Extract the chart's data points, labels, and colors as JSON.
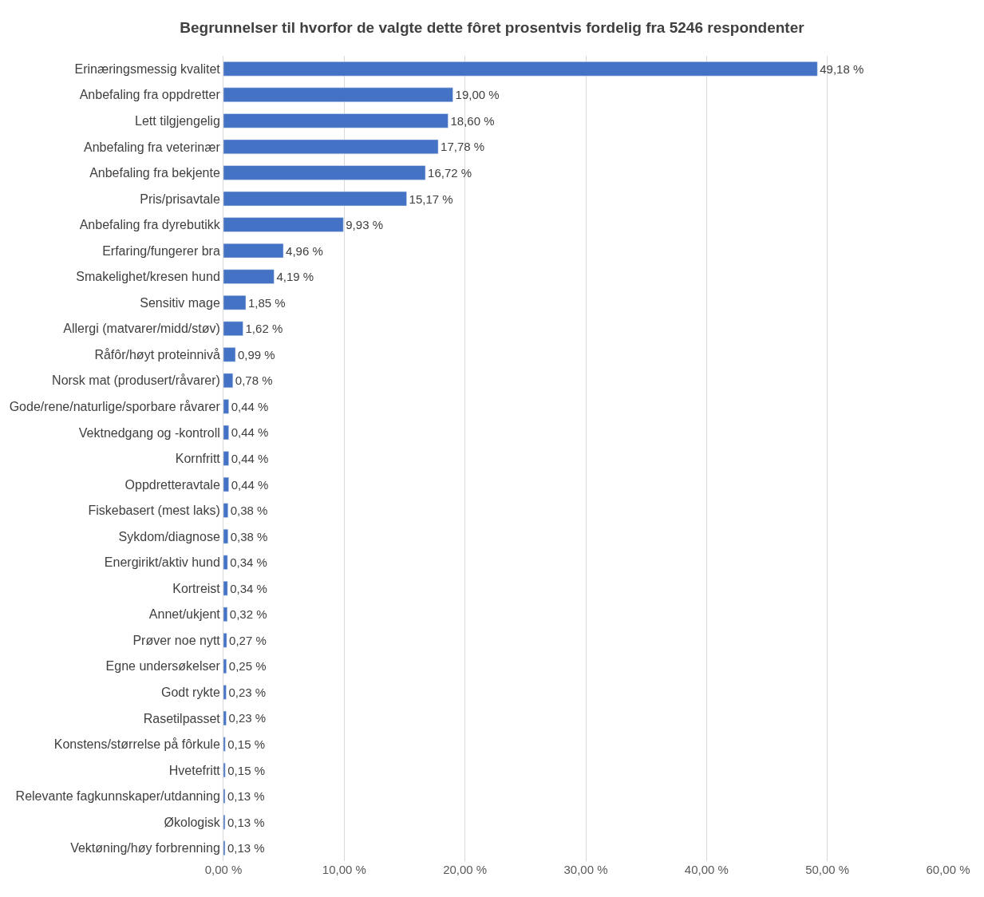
{
  "chart_data": {
    "type": "bar",
    "orientation": "horizontal",
    "title": "Begrunnelser til hvorfor de valgte dette fôret prosentvis fordelig fra 5246 respondenter",
    "categories": [
      "Erinæringsmessig kvalitet",
      "Anbefaling fra oppdretter",
      "Lett tilgjengelig",
      "Anbefaling fra veterinær",
      "Anbefaling fra bekjente",
      "Pris/prisavtale",
      "Anbefaling fra dyrebutikk",
      "Erfaring/fungerer bra",
      "Smakelighet/kresen hund",
      "Sensitiv mage",
      "Allergi (matvarer/midd/støv)",
      "Råfôr/høyt proteinnivå",
      "Norsk mat (produsert/råvarer)",
      "Gode/rene/naturlige/sporbare råvarer",
      "Vektnedgang og -kontroll",
      "Kornfritt",
      "Oppdretteravtale",
      "Fiskebasert (mest laks)",
      "Sykdom/diagnose",
      "Energirikt/aktiv hund",
      "Kortreist",
      "Annet/ukjent",
      "Prøver noe nytt",
      "Egne undersøkelser",
      "Godt rykte",
      "Rasetilpasset",
      "Konstens/størrelse på fôrkule",
      "Hvetefritt",
      "Relevante fagkunnskaper/utdanning",
      "Økologisk",
      "Vektøning/høy forbrenning"
    ],
    "values": [
      49.18,
      19.0,
      18.6,
      17.78,
      16.72,
      15.17,
      9.93,
      4.96,
      4.19,
      1.85,
      1.62,
      0.99,
      0.78,
      0.44,
      0.44,
      0.44,
      0.44,
      0.38,
      0.38,
      0.34,
      0.34,
      0.32,
      0.27,
      0.25,
      0.23,
      0.23,
      0.15,
      0.15,
      0.13,
      0.13,
      0.13
    ],
    "value_labels": [
      "49,18 %",
      "19,00 %",
      "18,60 %",
      "17,78 %",
      "16,72 %",
      "15,17 %",
      "9,93 %",
      "4,96 %",
      "4,19 %",
      "1,85 %",
      "1,62 %",
      "0,99 %",
      "0,78 %",
      "0,44 %",
      "0,44 %",
      "0,44 %",
      "0,44 %",
      "0,38 %",
      "0,38 %",
      "0,34 %",
      "0,34 %",
      "0,32 %",
      "0,27 %",
      "0,25 %",
      "0,23 %",
      "0,23 %",
      "0,15 %",
      "0,15 %",
      "0,13 %",
      "0,13 %",
      "0,13 %"
    ],
    "color": "#4472c4",
    "xlim": [
      0,
      60
    ],
    "xticks": [
      {
        "value": 0,
        "label": "0,00 %"
      },
      {
        "value": 10,
        "label": "10,00 %"
      },
      {
        "value": 20,
        "label": "20,00 %"
      },
      {
        "value": 30,
        "label": "30,00 %"
      },
      {
        "value": 40,
        "label": "40,00 %"
      },
      {
        "value": 50,
        "label": "50,00 %"
      },
      {
        "value": 60,
        "label": "60,00 %"
      }
    ],
    "grid": "x"
  }
}
